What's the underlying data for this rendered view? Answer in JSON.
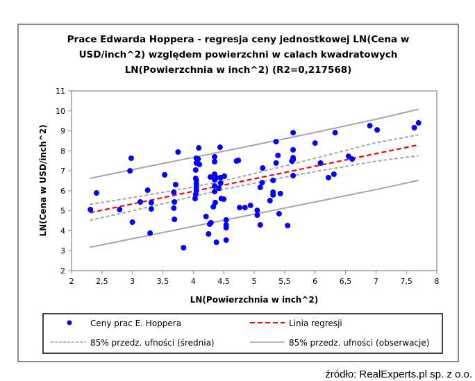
{
  "chart_data": {
    "type": "scatter",
    "title_lines": [
      "Prace Edwarda Hoppera - regresja ceny jednostkowej LN(Cena w",
      "USD/inch^2) względem powierzchni w calach kwadratowych",
      "LN(Powierzchnia w inch^2) (R2=0,217568)"
    ],
    "xlabel": "LN(Powierzchnia w inch^2)",
    "ylabel": "LN(Cena w USD/inch^2)",
    "xlim": [
      2,
      8
    ],
    "ylim": [
      2,
      11
    ],
    "xticks": [
      "2",
      "2,5",
      "3",
      "3,5",
      "4",
      "4,5",
      "5",
      "5,5",
      "6",
      "6,5",
      "7",
      "7,5",
      "8"
    ],
    "yticks": [
      "2",
      "3",
      "4",
      "5",
      "6",
      "7",
      "8",
      "9",
      "10",
      "11"
    ],
    "grid": false,
    "legend_position": "bottom",
    "r2": "0,217568",
    "series": [
      {
        "name": "Ceny prac E. Hoppera",
        "type": "scatter",
        "color": "#0000ff",
        "points": [
          [
            2.31,
            5.06
          ],
          [
            2.41,
            5.89
          ],
          [
            2.79,
            5.06
          ],
          [
            3.0,
            4.43
          ],
          [
            2.98,
            7.63
          ],
          [
            2.96,
            7.0
          ],
          [
            3.13,
            5.44
          ],
          [
            3.25,
            6.03
          ],
          [
            3.31,
            5.41
          ],
          [
            3.31,
            5.09
          ],
          [
            3.29,
            3.88
          ],
          [
            3.53,
            6.8
          ],
          [
            3.75,
            7.94
          ],
          [
            3.71,
            6.31
          ],
          [
            3.68,
            5.93
          ],
          [
            3.69,
            5.44
          ],
          [
            3.68,
            5.13
          ],
          [
            3.69,
            4.57
          ],
          [
            3.84,
            3.15
          ],
          [
            4.09,
            8.15
          ],
          [
            4.05,
            7.63
          ],
          [
            4.08,
            7.59
          ],
          [
            4.05,
            7.39
          ],
          [
            4.1,
            7.32
          ],
          [
            4.04,
            7.04
          ],
          [
            4.04,
            6.62
          ],
          [
            4.05,
            6.52
          ],
          [
            4.05,
            6.34
          ],
          [
            4.05,
            6.17
          ],
          [
            4.05,
            6.0
          ],
          [
            4.04,
            5.82
          ],
          [
            4.03,
            5.61
          ],
          [
            4.21,
            4.71
          ],
          [
            4.25,
            3.84
          ],
          [
            4.27,
            4.33
          ],
          [
            4.29,
            4.4
          ],
          [
            4.38,
            3.42
          ],
          [
            4.44,
            8.18
          ],
          [
            4.35,
            7.7
          ],
          [
            4.35,
            7.46
          ],
          [
            4.35,
            6.83
          ],
          [
            4.38,
            6.66
          ],
          [
            4.28,
            6.69
          ],
          [
            4.35,
            6.55
          ],
          [
            4.45,
            6.66
          ],
          [
            4.51,
            6.73
          ],
          [
            4.45,
            6.38
          ],
          [
            4.35,
            6.24
          ],
          [
            4.42,
            6.13
          ],
          [
            4.35,
            5.96
          ],
          [
            4.36,
            5.41
          ],
          [
            4.33,
            5.2
          ],
          [
            4.46,
            5.61
          ],
          [
            4.5,
            5.58
          ],
          [
            4.54,
            4.54
          ],
          [
            4.54,
            4.29
          ],
          [
            4.54,
            4.15
          ],
          [
            4.54,
            3.53
          ],
          [
            4.71,
            7.49
          ],
          [
            4.74,
            7.52
          ],
          [
            4.76,
            5.16
          ],
          [
            4.85,
            5.16
          ],
          [
            4.94,
            5.27
          ],
          [
            5.05,
            5.02
          ],
          [
            5.05,
            4.78
          ],
          [
            5.1,
            4.29
          ],
          [
            5.14,
            7.14
          ],
          [
            5.1,
            6.17
          ],
          [
            5.13,
            6.41
          ],
          [
            5.26,
            5.51
          ],
          [
            5.31,
            6.52
          ],
          [
            5.31,
            5.93
          ],
          [
            5.31,
            5.79
          ],
          [
            5.43,
            5.86
          ],
          [
            5.41,
            4.85
          ],
          [
            5.55,
            4.26
          ],
          [
            5.36,
            7.39
          ],
          [
            5.39,
            7.77
          ],
          [
            5.36,
            8.46
          ],
          [
            5.64,
            8.91
          ],
          [
            5.64,
            8.05
          ],
          [
            5.64,
            7.66
          ],
          [
            5.62,
            7.49
          ],
          [
            5.64,
            7.56
          ],
          [
            5.64,
            6.76
          ],
          [
            6.0,
            8.39
          ],
          [
            6.09,
            7.39
          ],
          [
            6.22,
            6.66
          ],
          [
            6.31,
            6.83
          ],
          [
            6.33,
            8.91
          ],
          [
            6.55,
            7.73
          ],
          [
            6.61,
            7.59
          ],
          [
            6.9,
            9.26
          ],
          [
            7.02,
            9.05
          ],
          [
            7.63,
            9.16
          ],
          [
            7.7,
            9.4
          ]
        ]
      },
      {
        "name": "Linia regresji",
        "type": "line",
        "style": "dashed",
        "color": "#ff0000",
        "x": [
          2.3,
          7.7
        ],
        "y": [
          4.9,
          8.3
        ]
      },
      {
        "name": "85% przedz. ufności (średnia)",
        "type": "line",
        "style": "dashed",
        "color": "#a6a6a6",
        "x": [
          2.3,
          3.0,
          3.5,
          4.0,
          4.5,
          5.0,
          5.5,
          6.0,
          6.5,
          7.0,
          7.7
        ],
        "y_upper": [
          5.32,
          5.66,
          5.92,
          6.19,
          6.5,
          6.86,
          7.24,
          7.63,
          8.02,
          8.41,
          8.8
        ],
        "y_lower": [
          4.52,
          5.0,
          5.35,
          5.72,
          6.07,
          6.38,
          6.68,
          6.96,
          7.22,
          7.48,
          7.76
        ]
      },
      {
        "name": "85% przedz. ufności (obserwacje)",
        "type": "line",
        "style": "solid",
        "color": "#a6a6a6",
        "x": [
          2.3,
          3.0,
          4.0,
          5.0,
          6.0,
          7.0,
          7.7
        ],
        "y_upper": [
          6.62,
          7.06,
          7.67,
          8.29,
          8.92,
          9.58,
          10.08
        ],
        "y_lower": [
          3.17,
          3.6,
          4.22,
          4.83,
          5.44,
          6.06,
          6.52
        ]
      }
    ]
  },
  "source": "źródło: RealExperts.pl sp. z o.o."
}
